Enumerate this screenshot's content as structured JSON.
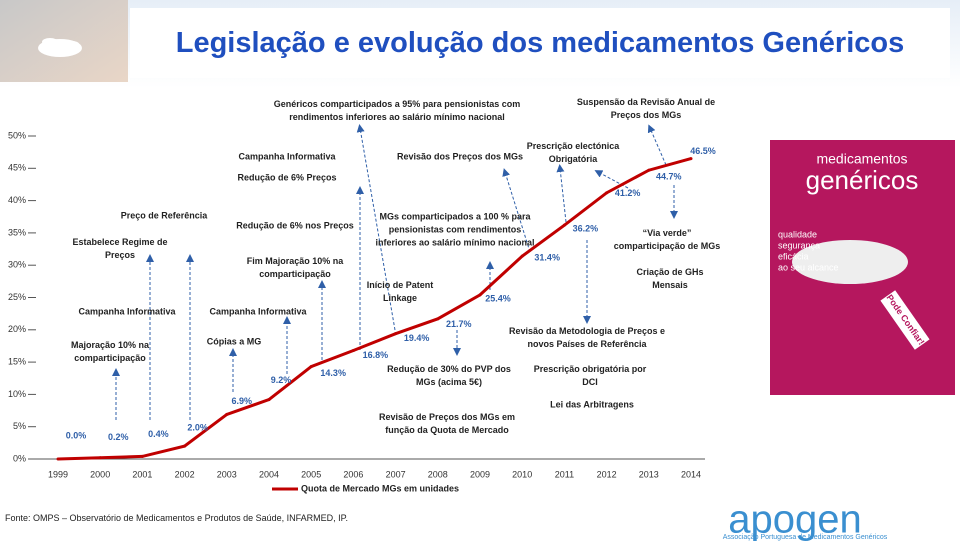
{
  "chart_data": {
    "type": "line",
    "title": "Legislação e evolução dos medicamentos Genéricos",
    "categories": [
      "1999",
      "2000",
      "2001",
      "2002",
      "2003",
      "2004",
      "2005",
      "2006",
      "2007",
      "2008",
      "2009",
      "2010",
      "2011",
      "2012",
      "2013",
      "2014"
    ],
    "series": [
      {
        "name": "Quota de Mercado MGs em unidades",
        "color": "#c00000",
        "values": [
          0.0,
          0.2,
          0.4,
          2.0,
          6.9,
          9.2,
          14.3,
          16.8,
          19.4,
          21.7,
          25.4,
          31.4,
          36.2,
          41.2,
          44.7,
          46.5
        ],
        "value_labels": [
          "0.0%",
          "0.2%",
          "0.4%",
          "2.0%",
          "6.9%",
          "9.2%",
          "14.3%",
          "16.8%",
          "19.4%",
          "21.7%",
          "25.4%",
          "31.4%",
          "36.2%",
          "41.2%",
          "44.7%",
          "46.5%"
        ]
      }
    ],
    "ylim": [
      0,
      50
    ],
    "yticks": [
      {
        "value": 0,
        "label": "0%"
      },
      {
        "value": 5,
        "label": "5%"
      },
      {
        "value": 10,
        "label": "10%"
      },
      {
        "value": 15,
        "label": "15%"
      },
      {
        "value": 20,
        "label": "20%"
      },
      {
        "value": 25,
        "label": "25%"
      },
      {
        "value": 30,
        "label": "30%"
      },
      {
        "value": 35,
        "label": "35%"
      },
      {
        "value": 40,
        "label": "40%"
      },
      {
        "value": 45,
        "label": "45%"
      },
      {
        "value": 50,
        "label": "50%"
      }
    ],
    "legend": "bottom",
    "annotations": [
      "Genéricos comparticipados a 95% para pensionistas com rendimentos inferiores ao salário mínimo nacional",
      "Suspensão da Revisão Anual de Preços dos MGs",
      "Campanha Informativa",
      "Redução de 6% Preços",
      "Revisão dos Preços dos MGs",
      "Prescrição electónica Obrigatória",
      "Preço de Referência",
      "Estabelece Regime de Preços",
      "Redução de 6% nos Preços",
      "Fim Majoração 10% na comparticipação",
      "MGs comparticipados a 100 % para pensionistas com rendimentos inferiores ao salário mínimo nacional",
      "Início de Patent Linkage",
      "“Via verde” comparticipação de MGs",
      "Criação de GHs Mensais",
      "Campanha Informativa",
      "Campanha Informativa",
      "Majoração 10% na comparticipação",
      "Cópias a MG",
      "Revisão da Metodologia de Preços e novos Países de Referência",
      "Redução de 30% do PVP dos MGs (acima 5€)",
      "Prescrição obrigatória por DCI",
      "Lei das Arbitragens",
      "Revisão de Preços dos MGs em função da Quota de Mercado"
    ],
    "source": "Fonte: OMPS – Observatório de Medicamentos e Produtos de Saúde, INFARMED, IP."
  },
  "product_box": {
    "brand": "medicamentos",
    "name": "genéricos",
    "claims": [
      "qualidade",
      "segurança",
      "eficácia",
      "ao seu alcance"
    ],
    "badge": "Pode Confiar!"
  },
  "logo": {
    "name": "apogen",
    "subtitle": "Associação Portuguesa de Medicamentos Genéricos"
  }
}
